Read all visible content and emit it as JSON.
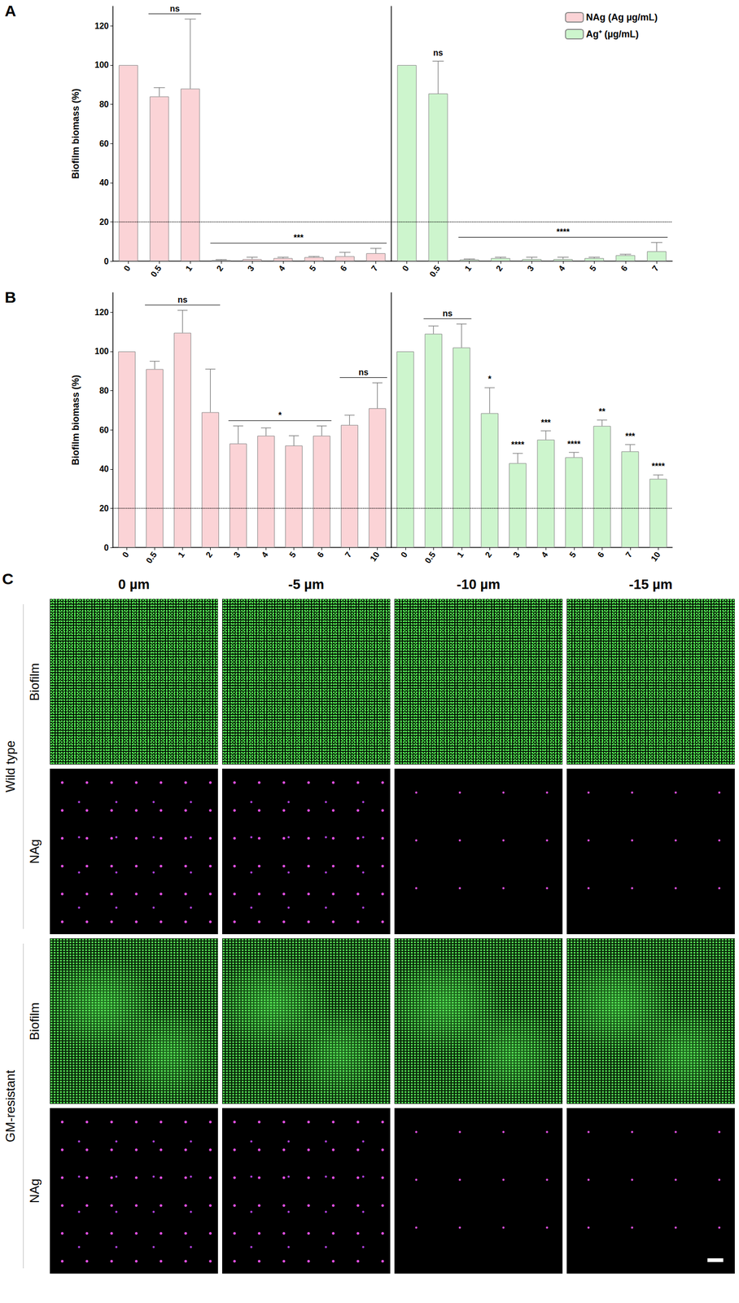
{
  "chart_data": [
    {
      "type": "bar",
      "panel_label": "A",
      "y_label": "Biofilm biomass (%)",
      "categories": [
        "0",
        "0.5",
        "1",
        "2",
        "3",
        "4",
        "5",
        "6",
        "7"
      ],
      "ylim": [
        0,
        130
      ],
      "yticks": [
        0,
        20,
        40,
        60,
        80,
        100,
        120
      ],
      "reference_line": 20,
      "legend": "top-right",
      "series": [
        {
          "name": "NAg (Ag µg/mL)",
          "color": "#fbd3d6",
          "values": [
            100,
            84,
            88,
            0.5,
            1,
            1.5,
            2,
            2.5,
            4
          ],
          "errors": [
            0,
            4.5,
            35.5,
            0.3,
            1,
            0.5,
            0.4,
            2,
            2.5
          ],
          "annotations": [
            {
              "text": "ns",
              "from": "0.5",
              "to": "1"
            },
            {
              "text": "***",
              "from": "2",
              "to": "7"
            }
          ]
        },
        {
          "name": "Ag⁺ (µg/mL)",
          "color": "#cdf5cd",
          "values": [
            100,
            85.5,
            0.8,
            1.5,
            1,
            1,
            1.5,
            3,
            5
          ],
          "errors": [
            0,
            16.5,
            0.3,
            0.5,
            1,
            1,
            0.5,
            0.5,
            4.5
          ],
          "annotations": [
            {
              "text": "ns",
              "from": "0.5",
              "to": "0.5"
            },
            {
              "text": "****",
              "from": "1",
              "to": "7"
            }
          ]
        }
      ]
    },
    {
      "type": "bar",
      "panel_label": "B",
      "y_label": "Biofilm biomass (%)",
      "categories": [
        "0",
        "0.5",
        "1",
        "2",
        "3",
        "4",
        "5",
        "6",
        "7",
        "10"
      ],
      "ylim": [
        0,
        130
      ],
      "yticks": [
        0,
        20,
        40,
        60,
        80,
        100,
        120
      ],
      "reference_line": 20,
      "series": [
        {
          "color": "#fbd3d6",
          "values": [
            100,
            91,
            109.5,
            69,
            53,
            57,
            52,
            57,
            62.5,
            71
          ],
          "errors": [
            0,
            4,
            11.5,
            22,
            9,
            4,
            5,
            5,
            5,
            13
          ],
          "annotations": [
            {
              "text": "ns",
              "from": "0.5",
              "to": "2"
            },
            {
              "text": "*",
              "from": "3",
              "to": "6"
            },
            {
              "text": "ns",
              "from": "7",
              "to": "10"
            }
          ]
        },
        {
          "color": "#cdf5cd",
          "values": [
            100,
            109,
            102,
            68.5,
            43,
            55,
            46,
            62,
            49,
            35
          ],
          "errors": [
            0,
            4,
            12,
            13,
            5,
            4.5,
            2.5,
            3,
            3.5,
            2
          ],
          "annotations": [
            {
              "text": "ns",
              "from": "0.5",
              "to": "1"
            },
            {
              "text": "*",
              "from": "2",
              "to": "2"
            },
            {
              "text": "****",
              "from": "3",
              "to": "3"
            },
            {
              "text": "***",
              "from": "4",
              "to": "4"
            },
            {
              "text": "****",
              "from": "5",
              "to": "5"
            },
            {
              "text": "**",
              "from": "6",
              "to": "6"
            },
            {
              "text": "***",
              "from": "7",
              "to": "7"
            },
            {
              "text": "****",
              "from": "10",
              "to": "10"
            }
          ]
        }
      ]
    }
  ],
  "panel_c": {
    "panel_label": "C",
    "columns": [
      "0 µm",
      "-5 µm",
      "-10 µm",
      "-15 µm"
    ],
    "groups": [
      {
        "label": "Wild type",
        "rows": [
          "Biofilm",
          "NAg"
        ]
      },
      {
        "label": "GM-resistant",
        "rows": [
          "Biofilm",
          "NAg"
        ]
      }
    ]
  }
}
